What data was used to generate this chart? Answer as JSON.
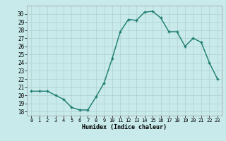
{
  "x": [
    0,
    1,
    2,
    3,
    4,
    5,
    6,
    7,
    8,
    9,
    10,
    11,
    12,
    13,
    14,
    15,
    16,
    17,
    18,
    19,
    20,
    21,
    22,
    23
  ],
  "y": [
    20.5,
    20.5,
    20.5,
    20.0,
    19.5,
    18.5,
    18.2,
    18.2,
    19.8,
    21.5,
    24.5,
    27.8,
    29.3,
    29.2,
    30.2,
    30.3,
    29.5,
    27.8,
    27.8,
    26.0,
    27.0,
    26.5,
    24.0,
    22.0
  ],
  "line_color": "#1a7a6e",
  "marker_color": "#1a7a6e",
  "bg_color": "#c8eaea",
  "grid_color": "#b0d0d0",
  "xlabel": "Humidex (Indice chaleur)",
  "ylabel_ticks": [
    18,
    19,
    20,
    21,
    22,
    23,
    24,
    25,
    26,
    27,
    28,
    29,
    30
  ],
  "ylim": [
    17.5,
    31.0
  ],
  "xlim": [
    -0.5,
    23.5
  ],
  "xticks": [
    0,
    1,
    2,
    3,
    4,
    5,
    6,
    7,
    8,
    9,
    10,
    11,
    12,
    13,
    14,
    15,
    16,
    17,
    18,
    19,
    20,
    21,
    22,
    23
  ]
}
